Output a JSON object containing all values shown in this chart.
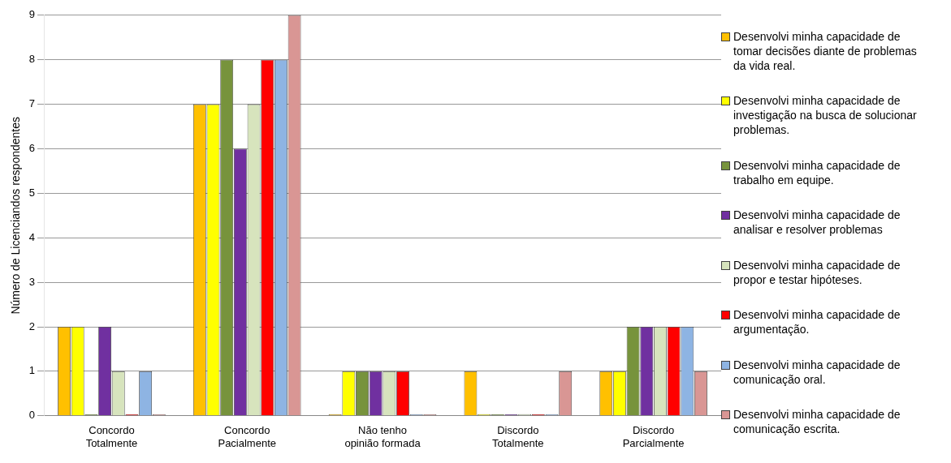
{
  "chart_data": {
    "type": "bar",
    "ylabel": "Número de Licenciandos respondentes",
    "categories": [
      "Concordo Totalmente",
      "Concordo Pacialmente",
      "Não tenho opinião formada",
      "Discordo Totalmente",
      "Discordo Parcialmente"
    ],
    "series": [
      {
        "name": "Desenvolvi minha capacidade de tomar decisões diante de problemas da vida real.",
        "color": "#ffc000",
        "values": [
          2,
          7,
          0,
          1,
          1
        ]
      },
      {
        "name": "Desenvolvi minha capacidade de investigação na busca de solucionar problemas.",
        "color": "#ffff00",
        "values": [
          2,
          7,
          1,
          0,
          1
        ]
      },
      {
        "name": "Desenvolvi minha capacidade de trabalho em equipe.",
        "color": "#77933c",
        "values": [
          0,
          8,
          1,
          0,
          2
        ]
      },
      {
        "name": "Desenvolvi minha capacidade de analisar e resolver problemas",
        "color": "#7030a0",
        "values": [
          2,
          6,
          1,
          0,
          2
        ]
      },
      {
        "name": "Desenvolvi minha capacidade de propor e testar hipóteses.",
        "color": "#d7e4bd",
        "values": [
          1,
          7,
          1,
          0,
          2
        ]
      },
      {
        "name": "Desenvolvi minha capacidade de argumentação.",
        "color": "#ff0000",
        "values": [
          0,
          8,
          1,
          0,
          2
        ]
      },
      {
        "name": "Desenvolvi minha capacidade de comunicação oral.",
        "color": "#8eb4e3",
        "values": [
          1,
          8,
          0,
          0,
          2
        ]
      },
      {
        "name": "Desenvolvi minha capacidade de comunicação escrita.",
        "color": "#d99694",
        "values": [
          0,
          9,
          0,
          1,
          1
        ]
      }
    ],
    "ylim": [
      0,
      9
    ],
    "yticks": [
      0,
      1,
      2,
      3,
      4,
      5,
      6,
      7,
      8,
      9
    ],
    "grid": "y",
    "legend": "right"
  }
}
